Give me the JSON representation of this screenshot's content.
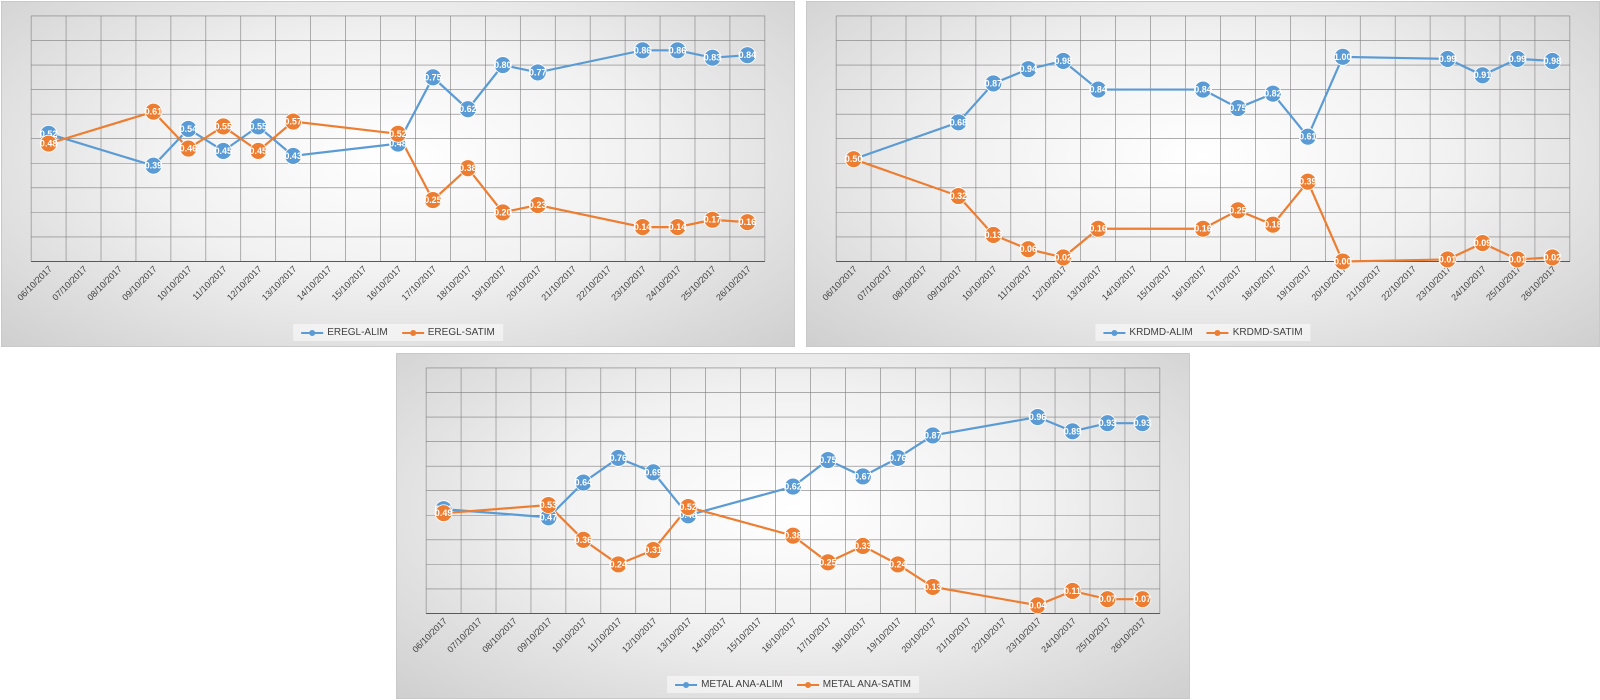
{
  "colors": {
    "alim": "#5b9bd5",
    "satim": "#ed7d31"
  },
  "dates": [
    "06/10/2017",
    "07/10/2017",
    "08/10/2017",
    "09/10/2017",
    "10/10/2017",
    "11/10/2017",
    "12/10/2017",
    "13/10/2017",
    "14/10/2017",
    "15/10/2017",
    "16/10/2017",
    "17/10/2017",
    "18/10/2017",
    "19/10/2017",
    "20/10/2017",
    "21/10/2017",
    "22/10/2017",
    "23/10/2017",
    "24/10/2017",
    "25/10/2017",
    "26/10/2017"
  ],
  "chart_data": [
    {
      "type": "line",
      "title": "",
      "ylim": [
        0,
        1
      ],
      "grid": true,
      "legend_position": "bottom",
      "series": [
        {
          "name": "EREGL-ALIM",
          "values": [
            0.52,
            null,
            null,
            0.39,
            0.54,
            0.45,
            0.55,
            0.43,
            null,
            null,
            0.48,
            0.75,
            0.62,
            0.8,
            0.77,
            null,
            null,
            0.86,
            0.86,
            0.83,
            0.84
          ]
        },
        {
          "name": "EREGL-SATIM",
          "values": [
            0.48,
            null,
            null,
            0.61,
            0.46,
            0.55,
            0.45,
            0.57,
            null,
            null,
            0.52,
            0.25,
            0.38,
            0.2,
            0.23,
            null,
            null,
            0.14,
            0.14,
            0.17,
            0.16
          ]
        }
      ]
    },
    {
      "type": "line",
      "title": "",
      "ylim": [
        0,
        1.2
      ],
      "grid": true,
      "legend_position": "bottom",
      "series": [
        {
          "name": "KRDMD-ALIM",
          "values": [
            0.5,
            null,
            null,
            0.68,
            0.87,
            0.94,
            0.98,
            0.84,
            null,
            null,
            0.84,
            0.75,
            0.82,
            0.61,
            1.0,
            null,
            null,
            0.99,
            0.91,
            0.99,
            0.98
          ]
        },
        {
          "name": "KRDMD-SATIM",
          "values": [
            0.5,
            null,
            null,
            0.32,
            0.13,
            0.06,
            0.02,
            0.16,
            null,
            null,
            0.16,
            0.25,
            0.18,
            0.39,
            0.0,
            null,
            null,
            0.01,
            0.09,
            0.01,
            0.02
          ]
        }
      ]
    },
    {
      "type": "line",
      "title": "",
      "ylim": [
        0,
        1.2
      ],
      "grid": true,
      "legend_position": "bottom",
      "series": [
        {
          "name": "METAL ANA-ALIM",
          "values": [
            0.51,
            null,
            null,
            0.47,
            0.64,
            0.76,
            0.69,
            0.48,
            null,
            null,
            0.62,
            0.75,
            0.67,
            0.76,
            0.87,
            null,
            null,
            0.96,
            0.89,
            0.93,
            0.93
          ]
        },
        {
          "name": "METAL ANA-SATIM",
          "values": [
            0.49,
            null,
            null,
            0.53,
            0.36,
            0.24,
            0.31,
            0.52,
            null,
            null,
            0.38,
            0.25,
            0.33,
            0.24,
            0.13,
            null,
            null,
            0.04,
            0.11,
            0.07,
            0.07
          ]
        }
      ]
    }
  ]
}
